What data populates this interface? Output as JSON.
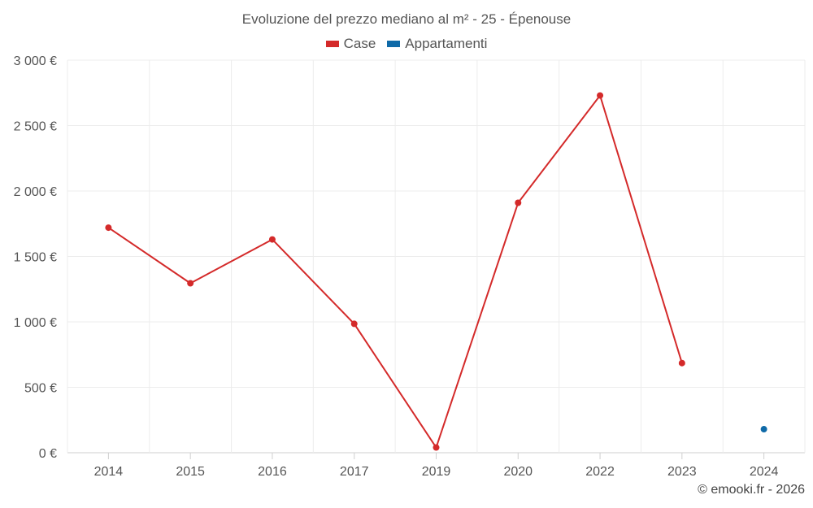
{
  "credit": "© emooki.fr - 2026",
  "chart_data": {
    "type": "line",
    "title": "Evoluzione del prezzo mediano al m² - 25 - Épenouse",
    "categories": [
      "2014",
      "2015",
      "2016",
      "2017",
      "2019",
      "2020",
      "2022",
      "2023",
      "2024"
    ],
    "ylim": [
      0,
      3000
    ],
    "yticks": [
      0,
      500,
      1000,
      1500,
      2000,
      2500,
      3000
    ],
    "ytick_labels": [
      "0 €",
      "500 €",
      "1 000 €",
      "1 500 €",
      "2 000 €",
      "2 500 €",
      "3 000 €"
    ],
    "grid": true,
    "legend_position": "top-center",
    "series": [
      {
        "name": "Case",
        "color": "#d42a2a",
        "values": [
          1720,
          1295,
          1630,
          985,
          40,
          1910,
          2730,
          685,
          null
        ]
      },
      {
        "name": "Appartamenti",
        "color": "#0f6aa8",
        "values": [
          null,
          null,
          null,
          null,
          null,
          null,
          null,
          null,
          180
        ]
      }
    ]
  }
}
